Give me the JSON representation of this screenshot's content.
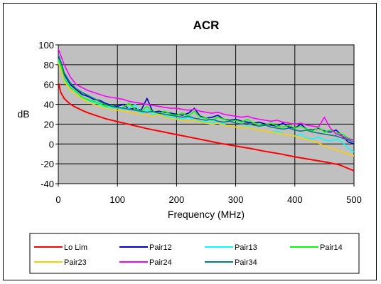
{
  "chart_data": {
    "type": "line",
    "title": "ACR",
    "xlabel": "Frequency (MHz)",
    "ylabel": "dB",
    "xlim": [
      0,
      500
    ],
    "ylim": [
      -40,
      100
    ],
    "xticks": [
      "0",
      "100",
      "200",
      "300",
      "400",
      "500"
    ],
    "yticks": [
      "-40",
      "-20",
      "0",
      "20",
      "40",
      "60",
      "80",
      "100"
    ],
    "grid": true,
    "legend_position": "bottom",
    "series": [
      {
        "name": "Lo Lim",
        "color": "#ff0000",
        "x": [
          1,
          2,
          4,
          6,
          8,
          10,
          15,
          20,
          25,
          31.25,
          40,
          50,
          62.5,
          80,
          100,
          125,
          150,
          175,
          200,
          225,
          250,
          275,
          300,
          325,
          350,
          375,
          400,
          425,
          450,
          475,
          500
        ],
        "y": [
          61,
          57,
          52.5,
          50,
          48,
          46,
          43,
          40.5,
          38.5,
          36.5,
          34,
          31.5,
          29,
          25.5,
          22.5,
          19,
          15.5,
          12.5,
          9.5,
          6.5,
          3.5,
          0.5,
          -2,
          -4.5,
          -7.5,
          -10,
          -13,
          -15.5,
          -18,
          -21,
          -27
        ]
      },
      {
        "name": "Pair12",
        "color": "#0000c0",
        "x": [
          0,
          5,
          10,
          20,
          30,
          40,
          50,
          60,
          70,
          80,
          90,
          100,
          110,
          120,
          130,
          140,
          150,
          160,
          170,
          180,
          190,
          200,
          210,
          220,
          230,
          240,
          250,
          260,
          270,
          280,
          290,
          300,
          310,
          320,
          330,
          340,
          350,
          360,
          370,
          380,
          390,
          400,
          410,
          420,
          430,
          440,
          450,
          460,
          470,
          480,
          490,
          500
        ],
        "y": [
          88,
          80,
          70,
          60,
          55,
          50,
          48,
          45,
          44,
          41,
          39,
          38,
          40,
          35,
          36,
          34,
          46,
          32,
          33,
          32,
          31,
          30,
          29,
          31,
          36,
          28,
          26,
          27,
          29,
          25,
          24,
          25,
          23,
          22,
          21,
          22,
          20,
          19,
          18,
          21,
          17,
          16,
          20,
          15,
          14,
          16,
          13,
          12,
          14,
          8,
          2,
          0
        ]
      },
      {
        "name": "Pair13",
        "color": "#00ffff",
        "x": [
          0,
          5,
          10,
          20,
          30,
          40,
          50,
          60,
          70,
          80,
          90,
          100,
          110,
          120,
          130,
          140,
          150,
          160,
          170,
          180,
          190,
          200,
          210,
          220,
          230,
          240,
          250,
          260,
          270,
          280,
          290,
          300,
          310,
          320,
          330,
          340,
          350,
          360,
          370,
          380,
          390,
          400,
          410,
          420,
          430,
          440,
          450,
          460,
          470,
          480,
          490,
          500
        ],
        "y": [
          84,
          76,
          68,
          58,
          52,
          48,
          44,
          42,
          40,
          37,
          36,
          37,
          35,
          36,
          40,
          30,
          35,
          29,
          30,
          28,
          27,
          26,
          25,
          27,
          24,
          23,
          22,
          21,
          23,
          20,
          18,
          17,
          16,
          18,
          15,
          14,
          13,
          12,
          13,
          10,
          9,
          8,
          10,
          6,
          5,
          7,
          4,
          3,
          5,
          2,
          -4,
          -8
        ]
      },
      {
        "name": "Pair14",
        "color": "#00ff00",
        "x": [
          0,
          5,
          10,
          20,
          30,
          40,
          50,
          60,
          70,
          80,
          90,
          100,
          110,
          120,
          130,
          140,
          150,
          160,
          170,
          180,
          190,
          200,
          210,
          220,
          230,
          240,
          250,
          260,
          270,
          280,
          290,
          300,
          310,
          320,
          330,
          340,
          350,
          360,
          370,
          380,
          390,
          400,
          410,
          420,
          430,
          440,
          450,
          460,
          470,
          480,
          490,
          500
        ],
        "y": [
          86,
          78,
          66,
          57,
          53,
          47,
          45,
          43,
          41,
          38,
          39,
          36,
          37,
          41,
          35,
          33,
          38,
          32,
          31,
          33,
          30,
          29,
          31,
          28,
          33,
          27,
          26,
          24,
          27,
          25,
          23,
          24,
          22,
          25,
          21,
          20,
          19,
          21,
          18,
          17,
          19,
          16,
          18,
          15,
          13,
          17,
          12,
          14,
          11,
          10,
          6,
          4
        ]
      },
      {
        "name": "Pair23",
        "color": "#ffcc00",
        "x": [
          0,
          5,
          10,
          20,
          30,
          40,
          50,
          60,
          70,
          80,
          90,
          100,
          110,
          120,
          130,
          140,
          150,
          160,
          170,
          180,
          190,
          200,
          210,
          220,
          230,
          240,
          250,
          260,
          270,
          280,
          290,
          300,
          310,
          320,
          330,
          340,
          350,
          360,
          370,
          380,
          390,
          400,
          410,
          420,
          430,
          440,
          450,
          460,
          470,
          480,
          490,
          500
        ],
        "y": [
          82,
          74,
          64,
          55,
          50,
          46,
          42,
          40,
          38,
          36,
          35,
          34,
          33,
          32,
          31,
          30,
          29,
          28,
          30,
          27,
          26,
          25,
          24,
          23,
          24,
          22,
          21,
          20,
          21,
          19,
          18,
          17,
          16,
          17,
          15,
          14,
          13,
          12,
          11,
          10,
          9,
          8,
          6,
          5,
          3,
          1,
          -2,
          -4,
          -6,
          -8,
          -10,
          -12
        ]
      },
      {
        "name": "Pair24",
        "color": "#ff00ff",
        "x": [
          0,
          5,
          10,
          20,
          30,
          40,
          50,
          60,
          70,
          80,
          90,
          100,
          110,
          120,
          130,
          140,
          150,
          160,
          170,
          180,
          190,
          200,
          210,
          220,
          230,
          240,
          250,
          260,
          270,
          280,
          290,
          300,
          310,
          320,
          330,
          340,
          350,
          360,
          370,
          380,
          390,
          400,
          410,
          420,
          430,
          440,
          450,
          460,
          470,
          480,
          490,
          500
        ],
        "y": [
          96,
          88,
          80,
          68,
          60,
          57,
          54,
          52,
          50,
          48,
          47,
          46,
          45,
          43,
          42,
          41,
          40,
          39,
          38,
          37,
          36,
          36,
          35,
          34,
          35,
          33,
          32,
          31,
          32,
          30,
          29,
          28,
          27,
          28,
          26,
          25,
          24,
          23,
          24,
          22,
          21,
          20,
          21,
          19,
          18,
          17,
          27,
          16,
          10,
          8,
          5,
          4
        ]
      },
      {
        "name": "Pair34",
        "color": "#008080",
        "x": [
          0,
          5,
          10,
          20,
          30,
          40,
          50,
          60,
          70,
          80,
          90,
          100,
          110,
          120,
          130,
          140,
          150,
          160,
          170,
          180,
          190,
          200,
          210,
          220,
          230,
          240,
          250,
          260,
          270,
          280,
          290,
          300,
          310,
          320,
          330,
          340,
          350,
          360,
          370,
          380,
          390,
          400,
          410,
          420,
          430,
          440,
          450,
          460,
          470,
          480,
          490,
          500
        ],
        "y": [
          90,
          82,
          72,
          62,
          56,
          52,
          49,
          46,
          43,
          40,
          38,
          37,
          36,
          35,
          34,
          33,
          32,
          33,
          31,
          30,
          29,
          28,
          27,
          28,
          26,
          25,
          24,
          25,
          23,
          22,
          23,
          21,
          20,
          21,
          19,
          18,
          19,
          17,
          16,
          15,
          16,
          14,
          13,
          14,
          12,
          11,
          10,
          9,
          8,
          6,
          4,
          2
        ]
      }
    ]
  }
}
